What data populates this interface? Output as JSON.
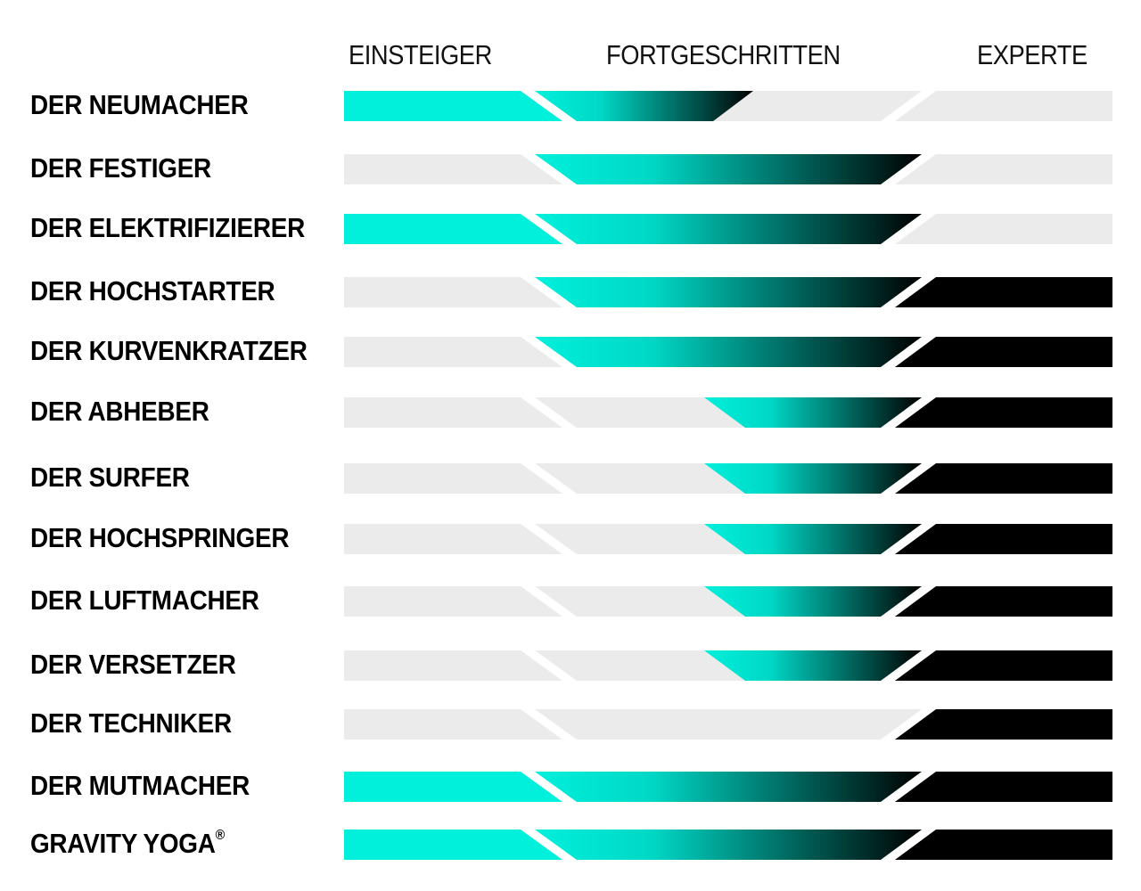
{
  "chart_data": {
    "type": "table",
    "columns": [
      "EINSTEIGER",
      "FORTGESCHRITTEN",
      "EXPERTE"
    ],
    "legend_note": "advanced: full = whole level, upper = upper part only, lower = lower part only, none = not covered",
    "colors": {
      "beginner": "#00F0DC",
      "gradient_start": "#00F0DC",
      "gradient_end": "#000000",
      "expert": "#000000",
      "empty": "#EBEBEB"
    },
    "rows": [
      {
        "name": "DER NEUMACHER",
        "beginner": 1,
        "advanced": "lower",
        "expert": 0
      },
      {
        "name": "DER FESTIGER",
        "beginner": 0,
        "advanced": "full",
        "expert": 0
      },
      {
        "name": "DER ELEKTRIFIZIERER",
        "beginner": 1,
        "advanced": "full",
        "expert": 0
      },
      {
        "name": "DER HOCHSTARTER",
        "beginner": 0,
        "advanced": "full",
        "expert": 1
      },
      {
        "name": "DER KURVENKRATZER",
        "beginner": 0,
        "advanced": "full",
        "expert": 1
      },
      {
        "name": "DER ABHEBER",
        "beginner": 0,
        "advanced": "upper",
        "expert": 1
      },
      {
        "name": "DER SURFER",
        "beginner": 0,
        "advanced": "upper",
        "expert": 1
      },
      {
        "name": "DER HOCHSPRINGER",
        "beginner": 0,
        "advanced": "upper",
        "expert": 1
      },
      {
        "name": "DER LUFTMACHER",
        "beginner": 0,
        "advanced": "upper",
        "expert": 1
      },
      {
        "name": "DER VERSETZER",
        "beginner": 0,
        "advanced": "upper",
        "expert": 1
      },
      {
        "name": "DER TECHNIKER",
        "beginner": 0,
        "advanced": "none",
        "expert": 1
      },
      {
        "name": "DER MUTMACHER",
        "beginner": 1,
        "advanced": "full",
        "expert": 1
      },
      {
        "name": "GRAVITY YOGA",
        "sup": "®",
        "beginner": 1,
        "advanced": "full",
        "expert": 1
      }
    ]
  }
}
